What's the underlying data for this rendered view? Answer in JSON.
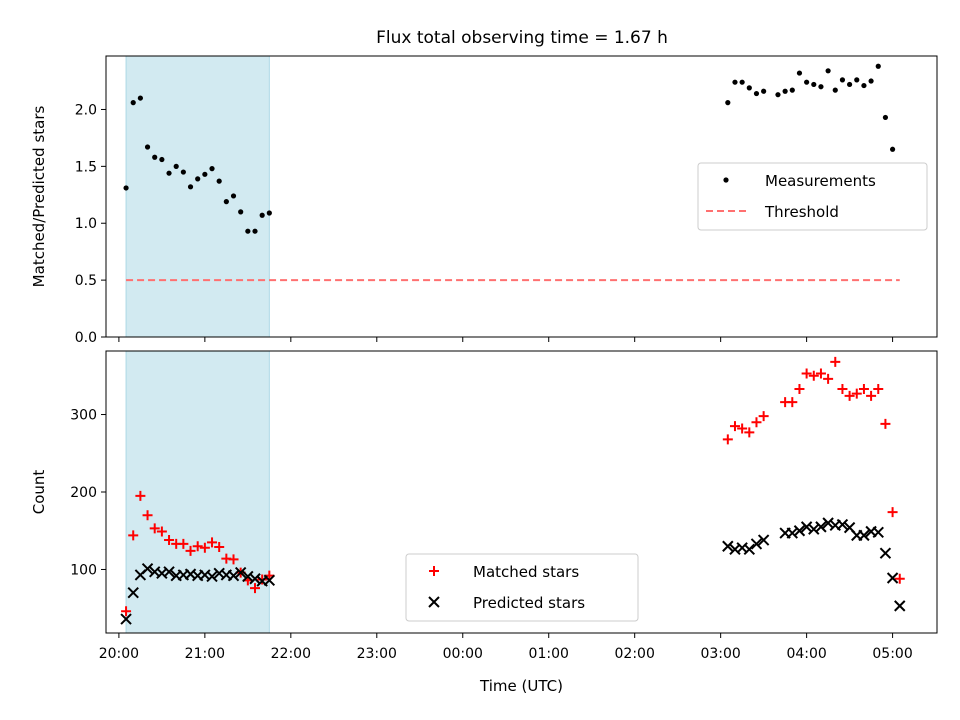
{
  "figure": {
    "title": "Flux total observing time = 1.67 h"
  },
  "chart_data": [
    {
      "type": "scatter",
      "panel": "top",
      "title": "Flux total observing time = 1.67 h",
      "xlabel": "",
      "ylabel": "Matched/Predicted stars",
      "xlim": [
        "19:51",
        "05:31"
      ],
      "ylim": [
        0,
        2.47
      ],
      "yticks": [
        0.0,
        0.5,
        1.0,
        1.5,
        2.0
      ],
      "ytick_labels": [
        "0.0",
        "0.5",
        "1.0",
        "1.5",
        "2.0"
      ],
      "grid": false,
      "legend": "center-right",
      "highlight_span": {
        "x0": "20:05",
        "x1": "21:45",
        "color": "#add8e6"
      },
      "series": [
        {
          "name": "Measurements",
          "marker": "dot",
          "color": "#000000",
          "x": [
            "20:05",
            "20:10",
            "20:15",
            "20:20",
            "20:25",
            "20:30",
            "20:35",
            "20:40",
            "20:45",
            "20:50",
            "20:55",
            "21:00",
            "21:05",
            "21:10",
            "21:15",
            "21:20",
            "21:25",
            "21:30",
            "21:35",
            "21:40",
            "21:45",
            "03:05",
            "03:10",
            "03:15",
            "03:20",
            "03:25",
            "03:30",
            "03:40",
            "03:45",
            "03:50",
            "03:55",
            "04:00",
            "04:05",
            "04:10",
            "04:15",
            "04:20",
            "04:25",
            "04:30",
            "04:35",
            "04:40",
            "04:45",
            "04:50",
            "04:55",
            "05:00",
            "05:05"
          ],
          "y": [
            1.31,
            2.06,
            2.1,
            1.67,
            1.58,
            1.56,
            1.44,
            1.5,
            1.45,
            1.32,
            1.39,
            1.43,
            1.48,
            1.37,
            1.19,
            1.24,
            1.1,
            0.93,
            0.93,
            1.07,
            1.09,
            2.06,
            2.24,
            2.24,
            2.19,
            2.14,
            2.16,
            2.13,
            2.16,
            2.17,
            2.32,
            2.24,
            2.22,
            2.2,
            2.34,
            2.17,
            2.26,
            2.22,
            2.26,
            2.21,
            2.25,
            2.38,
            1.93,
            1.65,
            null
          ]
        },
        {
          "name": "Threshold",
          "line_style": "dashed",
          "color": "#ff7070",
          "x": [
            "20:05",
            "05:05"
          ],
          "y": [
            0.5,
            0.5
          ]
        }
      ]
    },
    {
      "type": "scatter",
      "panel": "bottom",
      "xlabel": "Time (UTC)",
      "ylabel": "Count",
      "xlim": [
        "19:51",
        "05:31"
      ],
      "ylim": [
        18,
        382
      ],
      "xticks": [
        "20:00",
        "21:00",
        "22:00",
        "23:00",
        "00:00",
        "01:00",
        "02:00",
        "03:00",
        "04:00",
        "05:00"
      ],
      "yticks": [
        100,
        200,
        300
      ],
      "ytick_labels": [
        "100",
        "200",
        "300"
      ],
      "grid": false,
      "legend": "lower-center",
      "highlight_span": {
        "x0": "20:05",
        "x1": "21:45",
        "color": "#add8e6"
      },
      "series": [
        {
          "name": "Matched stars",
          "marker": "plus",
          "color": "#ff0000",
          "x": [
            "20:05",
            "20:10",
            "20:15",
            "20:20",
            "20:25",
            "20:30",
            "20:35",
            "20:40",
            "20:45",
            "20:50",
            "20:55",
            "21:00",
            "21:05",
            "21:10",
            "21:15",
            "21:20",
            "21:25",
            "21:30",
            "21:35",
            "21:40",
            "21:45",
            "03:05",
            "03:10",
            "03:15",
            "03:20",
            "03:25",
            "03:30",
            "03:45",
            "03:50",
            "03:55",
            "04:00",
            "04:05",
            "04:10",
            "04:15",
            "04:20",
            "04:25",
            "04:30",
            "04:35",
            "04:40",
            "04:45",
            "04:50",
            "04:55",
            "05:00",
            "05:05"
          ],
          "y": [
            46,
            144,
            195,
            170,
            153,
            149,
            138,
            133,
            133,
            124,
            130,
            128,
            135,
            129,
            114,
            113,
            96,
            86,
            76,
            87,
            92,
            268,
            285,
            282,
            277,
            290,
            298,
            316,
            316,
            333,
            353,
            350,
            353,
            346,
            368,
            333,
            324,
            327,
            333,
            324,
            333,
            288,
            174,
            88
          ]
        },
        {
          "name": "Predicted stars",
          "marker": "x",
          "color": "#000000",
          "x": [
            "20:05",
            "20:10",
            "20:15",
            "20:20",
            "20:25",
            "20:30",
            "20:35",
            "20:40",
            "20:45",
            "20:50",
            "20:55",
            "21:00",
            "21:05",
            "21:10",
            "21:15",
            "21:20",
            "21:25",
            "21:30",
            "21:35",
            "21:40",
            "21:45",
            "03:05",
            "03:10",
            "03:15",
            "03:20",
            "03:25",
            "03:30",
            "03:45",
            "03:50",
            "03:55",
            "04:00",
            "04:05",
            "04:10",
            "04:15",
            "04:20",
            "04:25",
            "04:30",
            "04:35",
            "04:40",
            "04:45",
            "04:50",
            "04:55",
            "05:00",
            "05:05"
          ],
          "y": [
            36,
            70,
            93,
            101,
            97,
            95,
            97,
            92,
            93,
            94,
            92,
            93,
            91,
            95,
            93,
            92,
            96,
            91,
            88,
            85,
            86,
            130,
            126,
            128,
            126,
            133,
            138,
            147,
            147,
            150,
            155,
            152,
            155,
            160,
            157,
            158,
            154,
            144,
            144,
            149,
            148,
            121,
            89,
            53
          ]
        }
      ]
    }
  ]
}
